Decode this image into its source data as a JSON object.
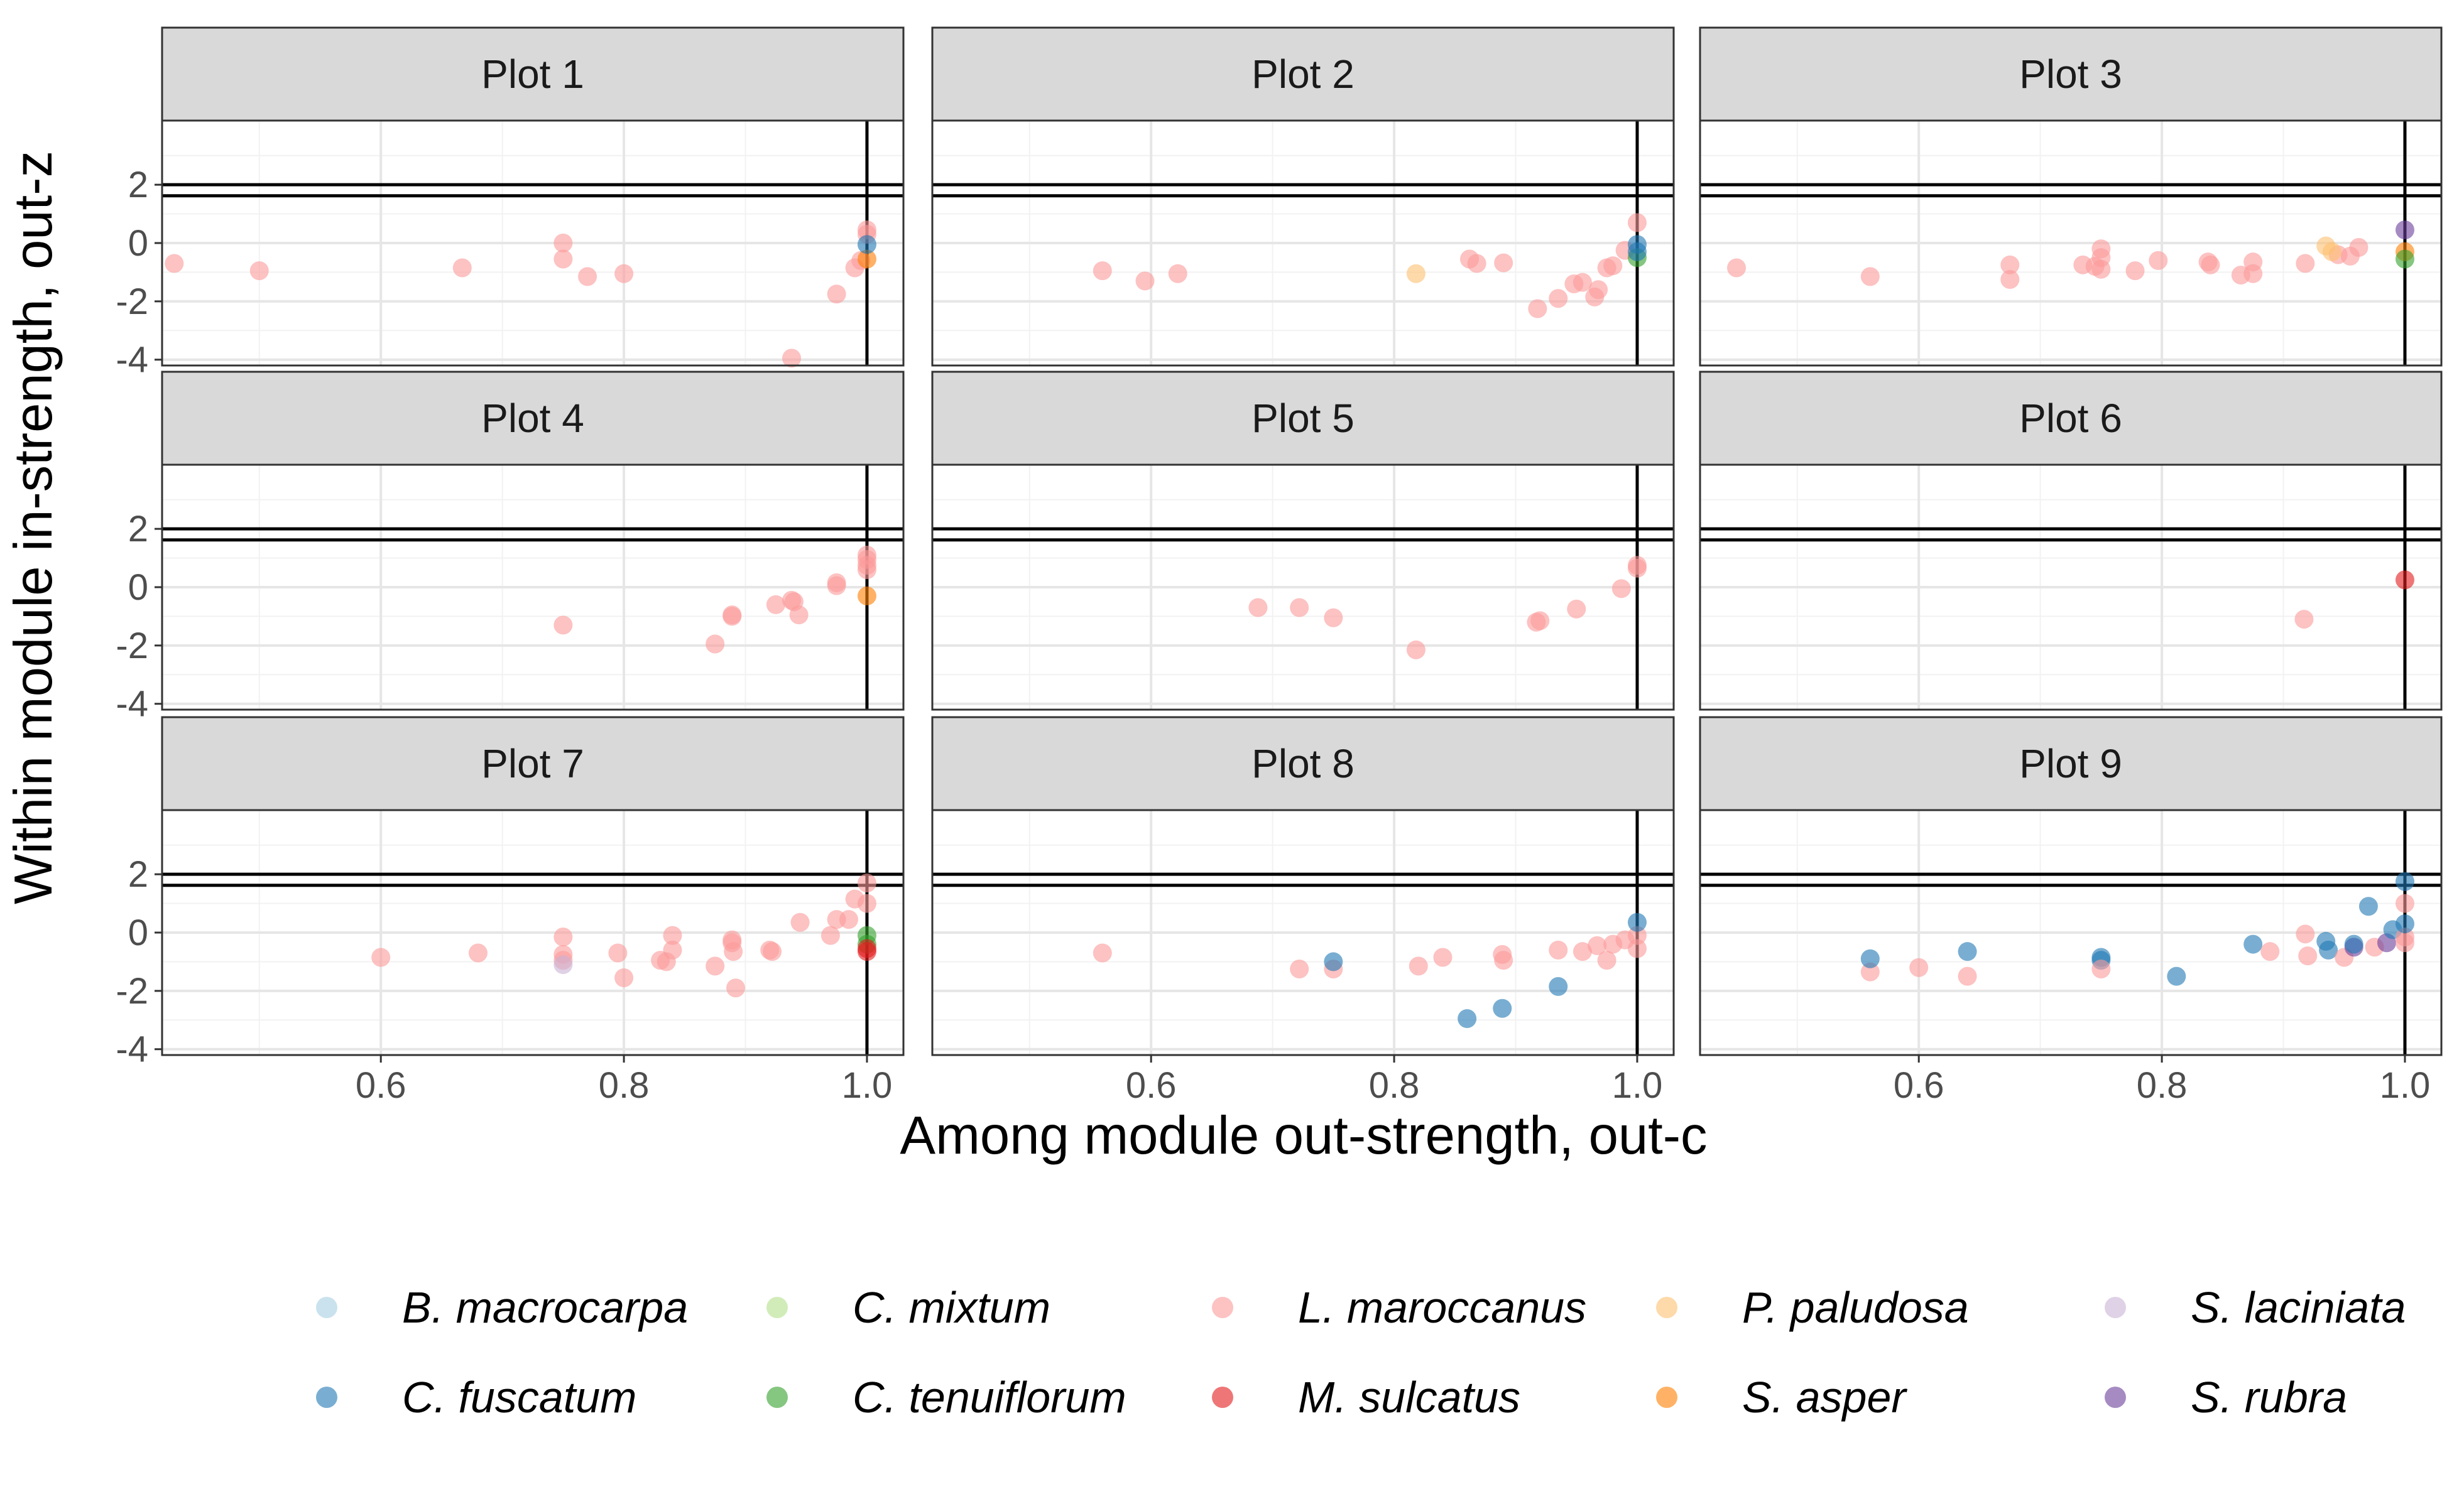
{
  "chart_data": {
    "type": "scatter",
    "facet_titles": [
      "Plot 1",
      "Plot 2",
      "Plot 3",
      "Plot 4",
      "Plot 5",
      "Plot 6",
      "Plot 7",
      "Plot 8",
      "Plot 9"
    ],
    "xlabel": "Among module out-strength, out-c",
    "ylabel": "Within module in-strength, out-z",
    "xlim": [
      0.42,
      1.03
    ],
    "ylim": [
      -4.2,
      4.2
    ],
    "x_ticks": [
      0.6,
      0.8,
      1.0
    ],
    "x_tick_labels": [
      "0.6",
      "0.8",
      "1.0"
    ],
    "y_ticks": [
      -4,
      -2,
      0,
      2
    ],
    "y_tick_labels": [
      "-4",
      "-2",
      "0",
      "2"
    ],
    "reference_lines": {
      "vertical_x": 1.0,
      "horizontal_y": [
        1.62,
        2.0
      ]
    },
    "point_alpha": 0.6,
    "grid": true,
    "legend_position": "bottom",
    "series": [
      {
        "name": "B. macrocarpa",
        "color": "#a6cee3"
      },
      {
        "name": "C. fuscatum",
        "color": "#1f78b4"
      },
      {
        "name": "C. mixtum",
        "color": "#b2df8a"
      },
      {
        "name": "C. tenuiflorum",
        "color": "#33a02c"
      },
      {
        "name": "L. maroccanus",
        "color": "#fb9a99"
      },
      {
        "name": "M. sulcatus",
        "color": "#e31a1c"
      },
      {
        "name": "P. paludosa",
        "color": "#fdbf6f"
      },
      {
        "name": "S. asper",
        "color": "#ff7f00"
      },
      {
        "name": "S. laciniata",
        "color": "#cab2d6"
      },
      {
        "name": "S. rubra",
        "color": "#6a3d9a"
      }
    ],
    "panels": [
      {
        "title": "Plot 1",
        "points": [
          {
            "s": "L. maroccanus",
            "x": 0.43,
            "y": -0.7
          },
          {
            "s": "L. maroccanus",
            "x": 0.5,
            "y": -0.95
          },
          {
            "s": "L. maroccanus",
            "x": 0.667,
            "y": -0.85
          },
          {
            "s": "L. maroccanus",
            "x": 0.75,
            "y": 0.0
          },
          {
            "s": "L. maroccanus",
            "x": 0.75,
            "y": -0.55
          },
          {
            "s": "L. maroccanus",
            "x": 0.77,
            "y": -1.15
          },
          {
            "s": "L. maroccanus",
            "x": 0.8,
            "y": -1.05
          },
          {
            "s": "L. maroccanus",
            "x": 0.938,
            "y": -3.95
          },
          {
            "s": "L. maroccanus",
            "x": 0.975,
            "y": -1.75
          },
          {
            "s": "L. maroccanus",
            "x": 0.99,
            "y": -0.85
          },
          {
            "s": "L. maroccanus",
            "x": 0.995,
            "y": -0.6
          },
          {
            "s": "L. maroccanus",
            "x": 1.0,
            "y": 0.45
          },
          {
            "s": "L. maroccanus",
            "x": 1.0,
            "y": 0.3
          },
          {
            "s": "S. asper",
            "x": 1.0,
            "y": -0.55
          },
          {
            "s": "C. fuscatum",
            "x": 1.0,
            "y": -0.05
          }
        ]
      },
      {
        "title": "Plot 2",
        "points": [
          {
            "s": "L. maroccanus",
            "x": 0.56,
            "y": -0.95
          },
          {
            "s": "L. maroccanus",
            "x": 0.595,
            "y": -1.3
          },
          {
            "s": "L. maroccanus",
            "x": 0.622,
            "y": -1.05
          },
          {
            "s": "P. paludosa",
            "x": 0.818,
            "y": -1.05
          },
          {
            "s": "L. maroccanus",
            "x": 0.862,
            "y": -0.55
          },
          {
            "s": "L. maroccanus",
            "x": 0.868,
            "y": -0.7
          },
          {
            "s": "L. maroccanus",
            "x": 0.89,
            "y": -0.68
          },
          {
            "s": "L. maroccanus",
            "x": 0.918,
            "y": -2.25
          },
          {
            "s": "L. maroccanus",
            "x": 0.935,
            "y": -1.9
          },
          {
            "s": "L. maroccanus",
            "x": 0.948,
            "y": -1.4
          },
          {
            "s": "L. maroccanus",
            "x": 0.955,
            "y": -1.35
          },
          {
            "s": "L. maroccanus",
            "x": 0.965,
            "y": -1.85
          },
          {
            "s": "L. maroccanus",
            "x": 0.968,
            "y": -1.6
          },
          {
            "s": "L. maroccanus",
            "x": 0.975,
            "y": -0.85
          },
          {
            "s": "L. maroccanus",
            "x": 0.98,
            "y": -0.78
          },
          {
            "s": "L. maroccanus",
            "x": 0.99,
            "y": -0.25
          },
          {
            "s": "L. maroccanus",
            "x": 1.0,
            "y": 0.7
          },
          {
            "s": "C. tenuiflorum",
            "x": 1.0,
            "y": -0.5
          },
          {
            "s": "C. fuscatum",
            "x": 1.0,
            "y": -0.05
          },
          {
            "s": "C. fuscatum",
            "x": 1.0,
            "y": -0.3
          }
        ]
      },
      {
        "title": "Plot 3",
        "points": [
          {
            "s": "L. maroccanus",
            "x": 0.45,
            "y": -0.85
          },
          {
            "s": "L. maroccanus",
            "x": 0.56,
            "y": -1.15
          },
          {
            "s": "L. maroccanus",
            "x": 0.675,
            "y": -0.75
          },
          {
            "s": "L. maroccanus",
            "x": 0.675,
            "y": -1.25
          },
          {
            "s": "L. maroccanus",
            "x": 0.735,
            "y": -0.75
          },
          {
            "s": "L. maroccanus",
            "x": 0.745,
            "y": -0.8
          },
          {
            "s": "L. maroccanus",
            "x": 0.75,
            "y": -0.2
          },
          {
            "s": "L. maroccanus",
            "x": 0.75,
            "y": -0.5
          },
          {
            "s": "L. maroccanus",
            "x": 0.75,
            "y": -0.9
          },
          {
            "s": "L. maroccanus",
            "x": 0.778,
            "y": -0.95
          },
          {
            "s": "L. maroccanus",
            "x": 0.797,
            "y": -0.6
          },
          {
            "s": "L. maroccanus",
            "x": 0.838,
            "y": -0.65
          },
          {
            "s": "L. maroccanus",
            "x": 0.84,
            "y": -0.75
          },
          {
            "s": "L. maroccanus",
            "x": 0.865,
            "y": -1.1
          },
          {
            "s": "L. maroccanus",
            "x": 0.875,
            "y": -0.65
          },
          {
            "s": "L. maroccanus",
            "x": 0.875,
            "y": -1.05
          },
          {
            "s": "L. maroccanus",
            "x": 0.918,
            "y": -0.7
          },
          {
            "s": "L. maroccanus",
            "x": 0.945,
            "y": -0.4
          },
          {
            "s": "L. maroccanus",
            "x": 0.955,
            "y": -0.45
          },
          {
            "s": "L. maroccanus",
            "x": 0.962,
            "y": -0.15
          },
          {
            "s": "P. paludosa",
            "x": 0.935,
            "y": -0.1
          },
          {
            "s": "P. paludosa",
            "x": 0.94,
            "y": -0.3
          },
          {
            "s": "S. asper",
            "x": 1.0,
            "y": -0.3
          },
          {
            "s": "C. tenuiflorum",
            "x": 1.0,
            "y": -0.55
          },
          {
            "s": "S. rubra",
            "x": 1.0,
            "y": 0.45
          }
        ]
      },
      {
        "title": "Plot 4",
        "points": [
          {
            "s": "L. maroccanus",
            "x": 0.75,
            "y": -1.3
          },
          {
            "s": "L. maroccanus",
            "x": 0.875,
            "y": -1.95
          },
          {
            "s": "L. maroccanus",
            "x": 0.889,
            "y": -0.95
          },
          {
            "s": "L. maroccanus",
            "x": 0.889,
            "y": -1.0
          },
          {
            "s": "L. maroccanus",
            "x": 0.925,
            "y": -0.6
          },
          {
            "s": "L. maroccanus",
            "x": 0.938,
            "y": -0.45
          },
          {
            "s": "L. maroccanus",
            "x": 0.94,
            "y": -0.5
          },
          {
            "s": "L. maroccanus",
            "x": 0.944,
            "y": -0.95
          },
          {
            "s": "L. maroccanus",
            "x": 0.975,
            "y": 0.15
          },
          {
            "s": "L. maroccanus",
            "x": 0.975,
            "y": 0.05
          },
          {
            "s": "L. maroccanus",
            "x": 1.0,
            "y": 1.1
          },
          {
            "s": "L. maroccanus",
            "x": 1.0,
            "y": 0.95
          },
          {
            "s": "L. maroccanus",
            "x": 1.0,
            "y": 0.75
          },
          {
            "s": "L. maroccanus",
            "x": 1.0,
            "y": 0.6
          },
          {
            "s": "S. asper",
            "x": 1.0,
            "y": -0.3
          }
        ]
      },
      {
        "title": "Plot 5",
        "points": [
          {
            "s": "L. maroccanus",
            "x": 0.688,
            "y": -0.7
          },
          {
            "s": "L. maroccanus",
            "x": 0.722,
            "y": -0.7
          },
          {
            "s": "L. maroccanus",
            "x": 0.75,
            "y": -1.05
          },
          {
            "s": "L. maroccanus",
            "x": 0.818,
            "y": -2.15
          },
          {
            "s": "L. maroccanus",
            "x": 0.917,
            "y": -1.2
          },
          {
            "s": "L. maroccanus",
            "x": 0.92,
            "y": -1.15
          },
          {
            "s": "L. maroccanus",
            "x": 0.95,
            "y": -0.75
          },
          {
            "s": "L. maroccanus",
            "x": 0.987,
            "y": -0.05
          },
          {
            "s": "L. maroccanus",
            "x": 1.0,
            "y": 0.75
          },
          {
            "s": "L. maroccanus",
            "x": 1.0,
            "y": 0.65
          }
        ]
      },
      {
        "title": "Plot 6",
        "points": [
          {
            "s": "L. maroccanus",
            "x": 0.917,
            "y": -1.1
          },
          {
            "s": "M. sulcatus",
            "x": 1.0,
            "y": 0.25
          }
        ]
      },
      {
        "title": "Plot 7",
        "points": [
          {
            "s": "L. maroccanus",
            "x": 0.6,
            "y": -0.85
          },
          {
            "s": "L. maroccanus",
            "x": 0.68,
            "y": -0.7
          },
          {
            "s": "L. maroccanus",
            "x": 0.75,
            "y": -0.15
          },
          {
            "s": "L. maroccanus",
            "x": 0.75,
            "y": -0.75
          },
          {
            "s": "L. maroccanus",
            "x": 0.75,
            "y": -0.95
          },
          {
            "s": "S. laciniata",
            "x": 0.75,
            "y": -1.1
          },
          {
            "s": "L. maroccanus",
            "x": 0.795,
            "y": -0.7
          },
          {
            "s": "L. maroccanus",
            "x": 0.8,
            "y": -1.55
          },
          {
            "s": "L. maroccanus",
            "x": 0.83,
            "y": -0.95
          },
          {
            "s": "L. maroccanus",
            "x": 0.835,
            "y": -1.0
          },
          {
            "s": "L. maroccanus",
            "x": 0.84,
            "y": -0.1
          },
          {
            "s": "L. maroccanus",
            "x": 0.84,
            "y": -0.6
          },
          {
            "s": "L. maroccanus",
            "x": 0.875,
            "y": -1.15
          },
          {
            "s": "L. maroccanus",
            "x": 0.889,
            "y": -0.25
          },
          {
            "s": "L. maroccanus",
            "x": 0.889,
            "y": -0.35
          },
          {
            "s": "L. maroccanus",
            "x": 0.89,
            "y": -0.65
          },
          {
            "s": "L. maroccanus",
            "x": 0.892,
            "y": -1.9
          },
          {
            "s": "L. maroccanus",
            "x": 0.92,
            "y": -0.6
          },
          {
            "s": "L. maroccanus",
            "x": 0.922,
            "y": -0.65
          },
          {
            "s": "L. maroccanus",
            "x": 0.945,
            "y": 0.35
          },
          {
            "s": "L. maroccanus",
            "x": 0.97,
            "y": -0.1
          },
          {
            "s": "L. maroccanus",
            "x": 0.975,
            "y": 0.45
          },
          {
            "s": "L. maroccanus",
            "x": 0.985,
            "y": 0.45
          },
          {
            "s": "L. maroccanus",
            "x": 0.99,
            "y": 1.15
          },
          {
            "s": "L. maroccanus",
            "x": 1.0,
            "y": 1.7
          },
          {
            "s": "L. maroccanus",
            "x": 1.0,
            "y": 1.0
          },
          {
            "s": "C. tenuiflorum",
            "x": 1.0,
            "y": -0.1
          },
          {
            "s": "C. tenuiflorum",
            "x": 1.0,
            "y": -0.4
          },
          {
            "s": "M. sulcatus",
            "x": 1.0,
            "y": -0.55
          },
          {
            "s": "M. sulcatus",
            "x": 1.0,
            "y": -0.65
          }
        ]
      },
      {
        "title": "Plot 8",
        "points": [
          {
            "s": "L. maroccanus",
            "x": 0.56,
            "y": -0.7
          },
          {
            "s": "L. maroccanus",
            "x": 0.722,
            "y": -1.25
          },
          {
            "s": "L. maroccanus",
            "x": 0.75,
            "y": -1.25
          },
          {
            "s": "C. fuscatum",
            "x": 0.75,
            "y": -1.0
          },
          {
            "s": "L. maroccanus",
            "x": 0.82,
            "y": -1.15
          },
          {
            "s": "L. maroccanus",
            "x": 0.84,
            "y": -0.85
          },
          {
            "s": "C. fuscatum",
            "x": 0.86,
            "y": -2.95
          },
          {
            "s": "L. maroccanus",
            "x": 0.889,
            "y": -0.75
          },
          {
            "s": "L. maroccanus",
            "x": 0.89,
            "y": -0.95
          },
          {
            "s": "C. fuscatum",
            "x": 0.889,
            "y": -2.6
          },
          {
            "s": "C. fuscatum",
            "x": 0.935,
            "y": -1.85
          },
          {
            "s": "L. maroccanus",
            "x": 0.935,
            "y": -0.6
          },
          {
            "s": "L. maroccanus",
            "x": 0.955,
            "y": -0.65
          },
          {
            "s": "L. maroccanus",
            "x": 0.967,
            "y": -0.45
          },
          {
            "s": "L. maroccanus",
            "x": 0.975,
            "y": -0.95
          },
          {
            "s": "L. maroccanus",
            "x": 0.98,
            "y": -0.4
          },
          {
            "s": "L. maroccanus",
            "x": 0.99,
            "y": -0.25
          },
          {
            "s": "L. maroccanus",
            "x": 1.0,
            "y": -0.1
          },
          {
            "s": "L. maroccanus",
            "x": 1.0,
            "y": -0.55
          },
          {
            "s": "C. fuscatum",
            "x": 1.0,
            "y": 0.35
          }
        ]
      },
      {
        "title": "Plot 9",
        "points": [
          {
            "s": "L. maroccanus",
            "x": 0.56,
            "y": -1.35
          },
          {
            "s": "C. fuscatum",
            "x": 0.56,
            "y": -0.9
          },
          {
            "s": "L. maroccanus",
            "x": 0.6,
            "y": -1.2
          },
          {
            "s": "C. fuscatum",
            "x": 0.64,
            "y": -0.65
          },
          {
            "s": "L. maroccanus",
            "x": 0.64,
            "y": -1.5
          },
          {
            "s": "C. fuscatum",
            "x": 0.75,
            "y": -0.85
          },
          {
            "s": "C. fuscatum",
            "x": 0.75,
            "y": -0.95
          },
          {
            "s": "L. maroccanus",
            "x": 0.75,
            "y": -1.25
          },
          {
            "s": "C. fuscatum",
            "x": 0.812,
            "y": -1.5
          },
          {
            "s": "C. fuscatum",
            "x": 0.875,
            "y": -0.4
          },
          {
            "s": "L. maroccanus",
            "x": 0.889,
            "y": -0.65
          },
          {
            "s": "L. maroccanus",
            "x": 0.918,
            "y": -0.05
          },
          {
            "s": "L. maroccanus",
            "x": 0.92,
            "y": -0.8
          },
          {
            "s": "C. fuscatum",
            "x": 0.935,
            "y": -0.3
          },
          {
            "s": "C. fuscatum",
            "x": 0.937,
            "y": -0.6
          },
          {
            "s": "L. maroccanus",
            "x": 0.95,
            "y": -0.85
          },
          {
            "s": "S. rubra",
            "x": 0.958,
            "y": -0.5
          },
          {
            "s": "C. fuscatum",
            "x": 0.958,
            "y": -0.4
          },
          {
            "s": "C. fuscatum",
            "x": 0.97,
            "y": 0.9
          },
          {
            "s": "L. maroccanus",
            "x": 0.975,
            "y": -0.5
          },
          {
            "s": "S. rubra",
            "x": 0.985,
            "y": -0.35
          },
          {
            "s": "C. fuscatum",
            "x": 0.99,
            "y": 0.1
          },
          {
            "s": "L. maroccanus",
            "x": 1.0,
            "y": 1.0
          },
          {
            "s": "L. maroccanus",
            "x": 1.0,
            "y": -0.15
          },
          {
            "s": "L. maroccanus",
            "x": 1.0,
            "y": -0.35
          },
          {
            "s": "C. fuscatum",
            "x": 1.0,
            "y": 1.75
          },
          {
            "s": "C. fuscatum",
            "x": 1.0,
            "y": 0.3
          }
        ]
      }
    ]
  }
}
